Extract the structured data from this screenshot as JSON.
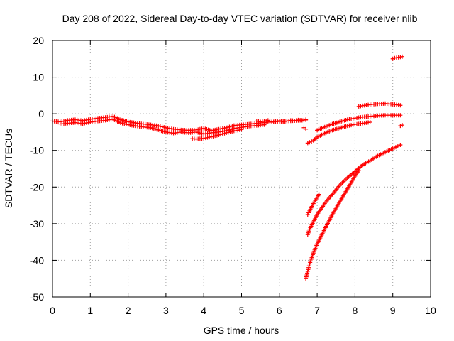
{
  "chart_data": {
    "type": "scatter",
    "title": "Day 208 of 2022, Sidereal Day-to-day VTEC variation (SDTVAR) for receiver nlib",
    "xlabel": "GPS time / hours",
    "ylabel": "SDTVAR / TECUs",
    "xlim": [
      0,
      10
    ],
    "ylim": [
      -50,
      20
    ],
    "xticks": [
      "0",
      "1",
      "2",
      "3",
      "4",
      "5",
      "6",
      "7",
      "8",
      "9",
      "10"
    ],
    "yticks": [
      "-50",
      "-40",
      "-30",
      "-20",
      "-10",
      "0",
      "10",
      "20"
    ],
    "grid": true,
    "marker": "+",
    "color": "#ff0000",
    "series": [
      {
        "x": [
          0.0,
          0.2,
          0.4,
          0.6,
          0.8,
          1.0,
          1.2,
          1.4,
          1.6,
          1.8,
          2.0,
          2.2,
          2.4,
          2.6,
          2.8,
          3.0,
          3.2,
          3.4,
          3.6,
          3.8,
          4.0,
          4.2,
          4.4,
          4.6,
          4.8,
          5.0,
          5.2,
          5.4,
          5.6,
          5.8,
          6.0,
          6.2,
          6.4,
          6.6,
          6.7
        ],
        "y": [
          -2.0,
          -2.2,
          -1.8,
          -1.6,
          -1.9,
          -1.5,
          -1.2,
          -1.0,
          -0.7,
          -1.6,
          -2.2,
          -2.5,
          -2.8,
          -3.0,
          -3.3,
          -3.8,
          -4.2,
          -4.4,
          -4.5,
          -4.4,
          -4.0,
          -4.6,
          -4.2,
          -3.8,
          -3.2,
          -3.0,
          -2.8,
          -2.6,
          -2.4,
          -2.2,
          -2.1,
          -2.0,
          -1.9,
          -1.8,
          -1.7
        ]
      },
      {
        "x": [
          0.2,
          0.4,
          0.6,
          0.8,
          1.0,
          1.2,
          1.4,
          1.6,
          1.8,
          2.0,
          2.2,
          2.4,
          2.6,
          2.8,
          3.0,
          3.2,
          3.4,
          3.6,
          3.8,
          4.0,
          4.2,
          4.4,
          4.6,
          4.8,
          5.0,
          5.2,
          5.4,
          5.6
        ],
        "y": [
          -2.8,
          -2.6,
          -2.4,
          -2.7,
          -2.3,
          -2.0,
          -1.8,
          -1.5,
          -2.5,
          -3.0,
          -3.3,
          -3.6,
          -3.8,
          -4.4,
          -5.0,
          -5.3,
          -5.0,
          -5.2,
          -5.0,
          -5.5,
          -5.2,
          -5.0,
          -4.6,
          -4.0,
          -3.7,
          -3.4,
          -3.2,
          -3.0
        ]
      },
      {
        "x": [
          3.7,
          3.8,
          3.9,
          4.0,
          4.1,
          4.2,
          4.3,
          4.4,
          4.5,
          4.6,
          4.7,
          4.8,
          4.9,
          5.0
        ],
        "y": [
          -6.8,
          -6.9,
          -6.8,
          -6.7,
          -6.5,
          -6.3,
          -6.0,
          -5.8,
          -5.5,
          -5.2,
          -5.0,
          -4.7,
          -4.5,
          -4.3
        ]
      },
      {
        "x": [
          5.4,
          5.5,
          5.6,
          5.7,
          5.8,
          5.9,
          6.0,
          6.1,
          6.2,
          6.3,
          6.4,
          6.5,
          6.6,
          6.7
        ],
        "y": [
          -2.0,
          -2.2,
          -2.0,
          -1.8,
          -2.3,
          -2.1,
          -1.9,
          -2.2,
          -2.0,
          -1.8,
          -1.9,
          -1.7,
          -1.8,
          -1.6
        ]
      },
      {
        "x": [
          6.65,
          6.7
        ],
        "y": [
          -3.8,
          -4.2
        ]
      },
      {
        "x": [
          6.75,
          6.9,
          7.0,
          7.2,
          7.4,
          7.6,
          7.8,
          8.0,
          8.2,
          8.4
        ],
        "y": [
          -8.0,
          -7.3,
          -6.4,
          -5.3,
          -4.5,
          -3.9,
          -3.3,
          -2.9,
          -2.6,
          -2.3
        ]
      },
      {
        "x": [
          7.0,
          7.2,
          7.4,
          7.6,
          7.8,
          8.0,
          8.2,
          8.4,
          8.6,
          8.8,
          9.0,
          9.2
        ],
        "y": [
          -4.5,
          -3.6,
          -2.8,
          -2.2,
          -1.6,
          -1.2,
          -0.9,
          -0.7,
          -0.5,
          -0.4,
          -0.4,
          -0.4
        ]
      },
      {
        "x": [
          8.1,
          8.2,
          8.4,
          8.6,
          8.8,
          9.0,
          9.2
        ],
        "y": [
          2.0,
          2.2,
          2.5,
          2.7,
          2.8,
          2.6,
          2.3
        ]
      },
      {
        "x": [
          9.0,
          9.05,
          9.1,
          9.15,
          9.2,
          9.25
        ],
        "y": [
          15.0,
          15.2,
          15.3,
          15.4,
          15.5,
          15.6
        ]
      },
      {
        "x": [
          9.2,
          9.25
        ],
        "y": [
          -3.3,
          -3.1
        ]
      },
      {
        "x": [
          6.75,
          6.8,
          6.9,
          7.0,
          7.05
        ],
        "y": [
          -27.5,
          -26.5,
          -24.5,
          -22.8,
          -22.0
        ]
      },
      {
        "x": [
          6.75,
          6.8,
          6.9,
          7.0,
          7.2,
          7.4,
          7.6,
          7.8,
          8.0,
          8.2,
          8.4,
          8.6,
          8.8,
          9.0,
          9.2
        ],
        "y": [
          -33.0,
          -31.5,
          -29.5,
          -27.5,
          -24.5,
          -22.0,
          -19.5,
          -17.5,
          -15.8,
          -14.0,
          -12.8,
          -11.5,
          -10.5,
          -9.5,
          -8.5
        ]
      },
      {
        "x": [
          6.7,
          6.75,
          6.8,
          6.9,
          7.0,
          7.2,
          7.4,
          7.6,
          7.8,
          8.0,
          8.1
        ],
        "y": [
          -45.0,
          -43.0,
          -41.0,
          -38.0,
          -35.5,
          -31.5,
          -27.5,
          -24.0,
          -20.5,
          -17.0,
          -15.5
        ]
      }
    ]
  }
}
